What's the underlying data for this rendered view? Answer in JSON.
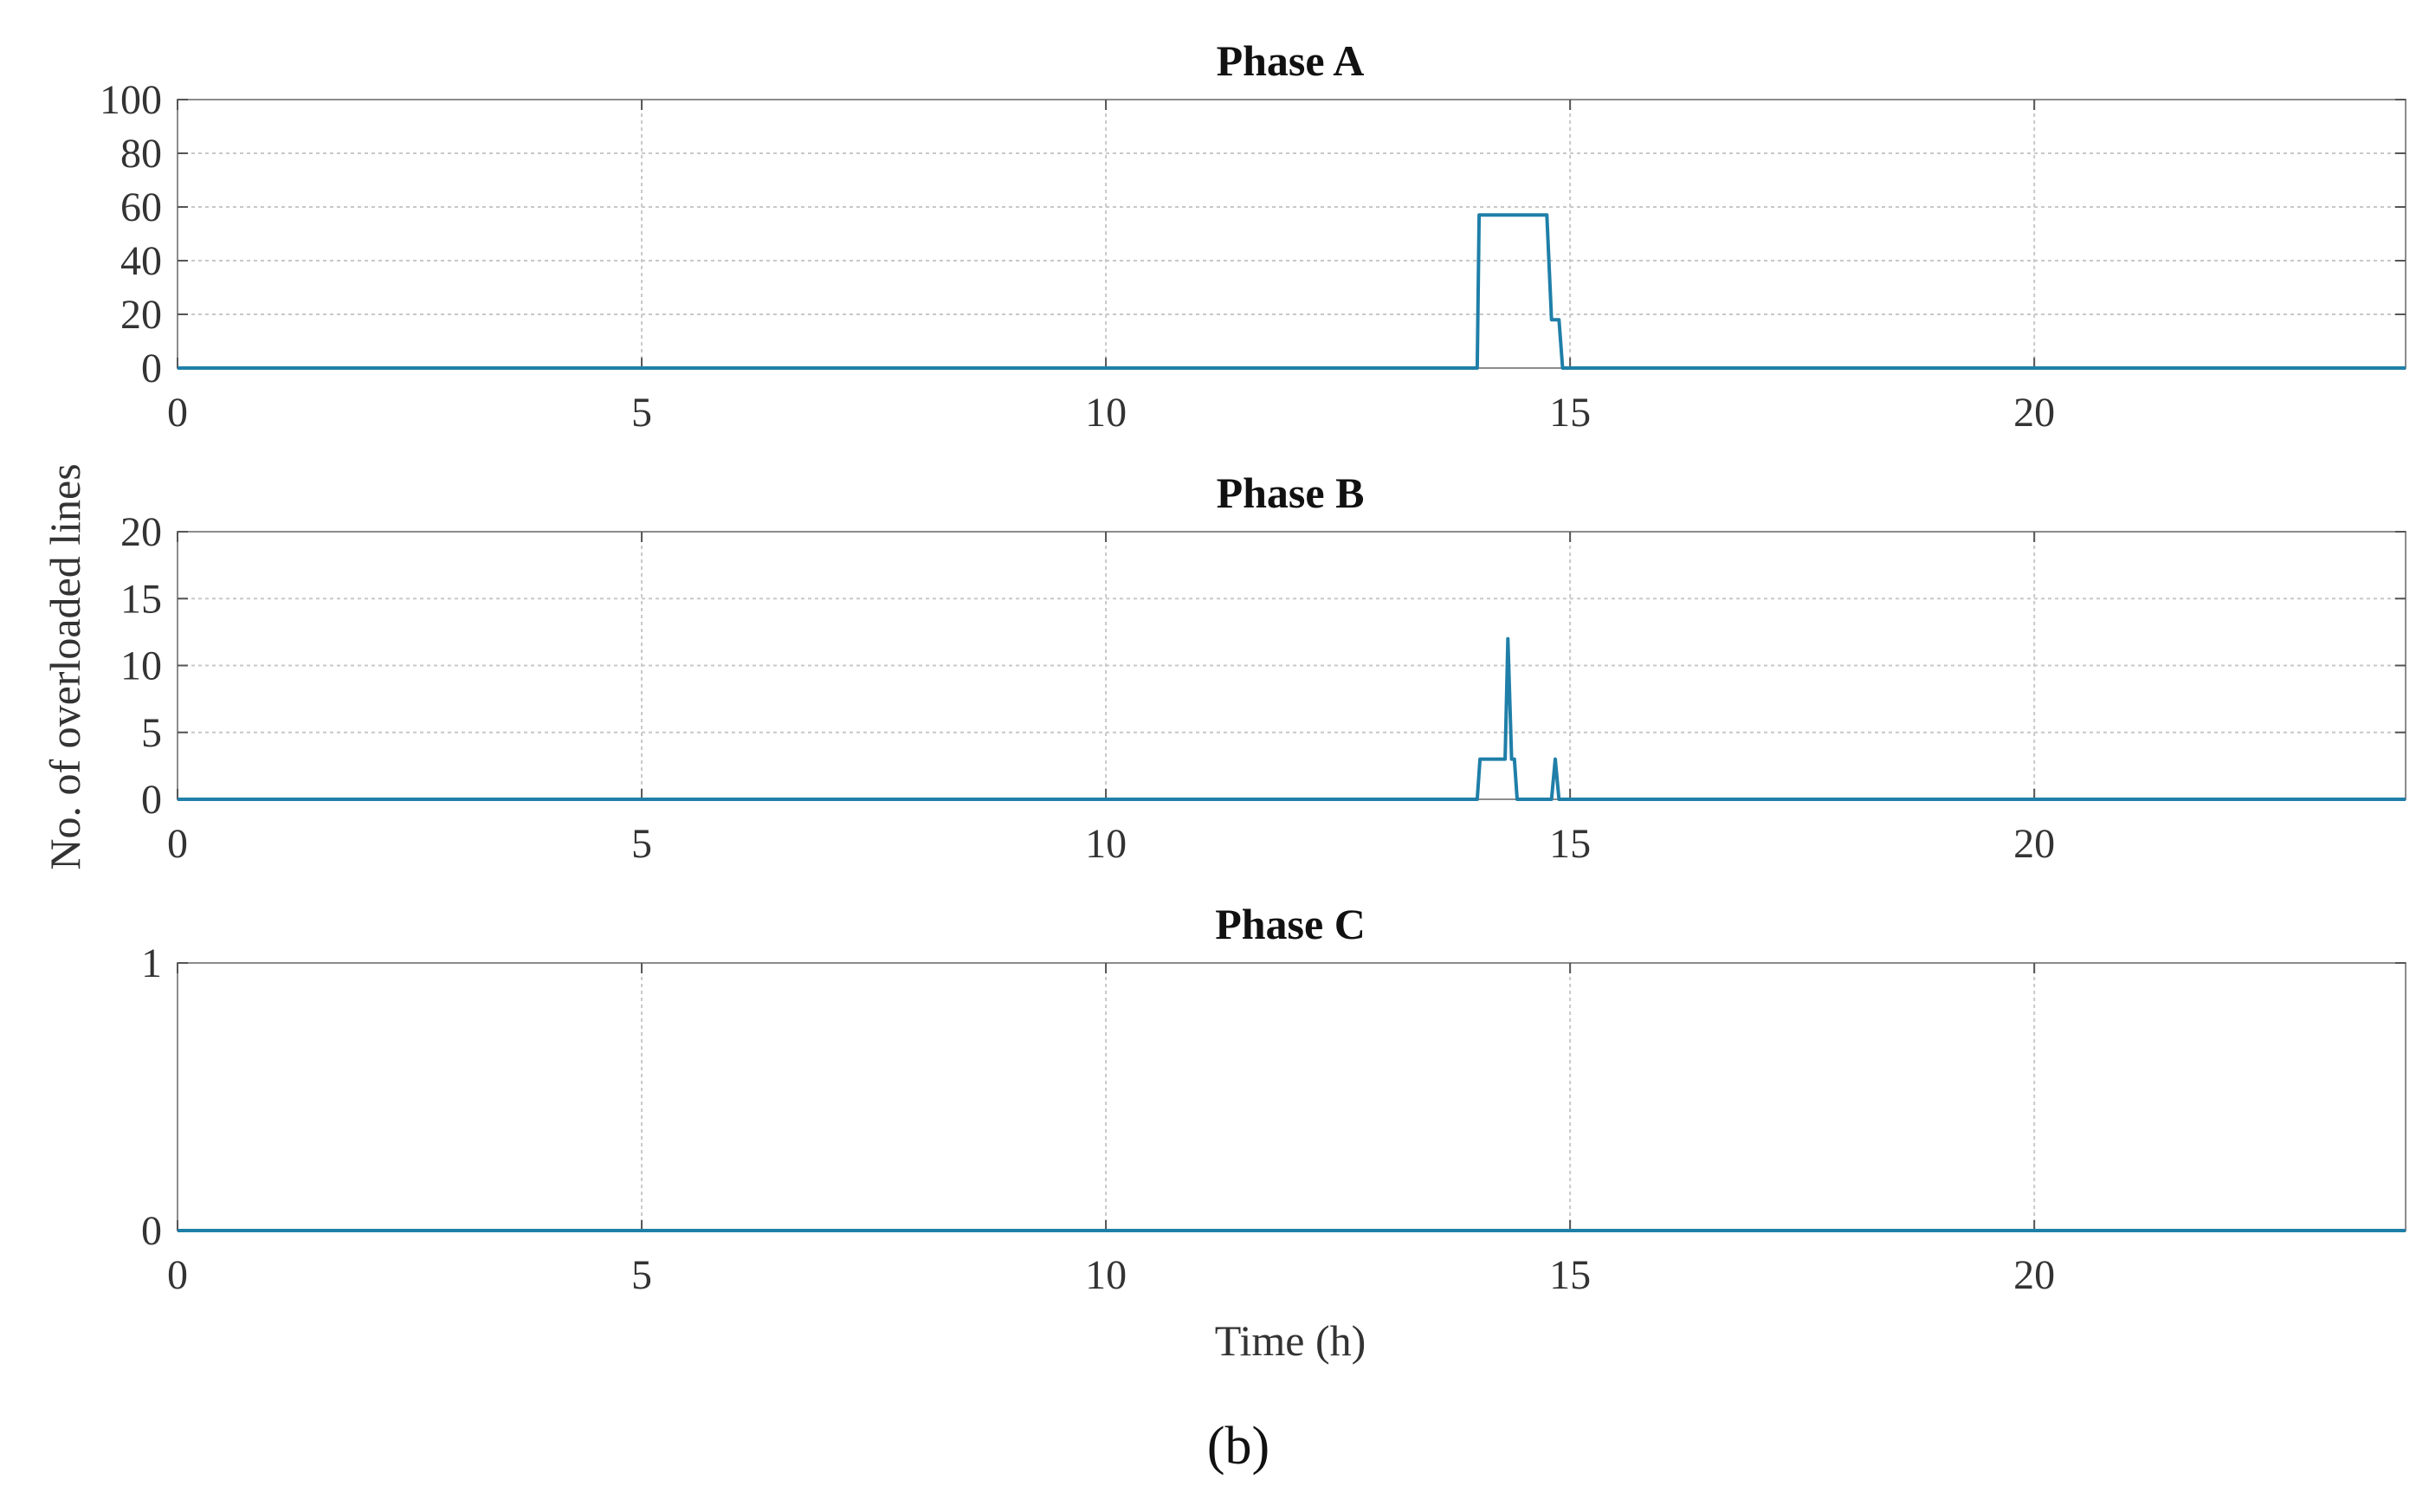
{
  "figure_label": "(b)",
  "ylabel": "No. of overloaded lines",
  "xlabel": "Time (h)",
  "line_color": "#1f7fa8",
  "chart_data": [
    {
      "type": "line",
      "title": "Phase A",
      "xlim": [
        0,
        24
      ],
      "ylim": [
        0,
        100
      ],
      "xticks": [
        0,
        5,
        10,
        15,
        20
      ],
      "yticks": [
        0,
        20,
        40,
        60,
        80,
        100
      ],
      "grid": true,
      "series": [
        {
          "x": [
            0,
            14.0,
            14.02,
            14.75,
            14.8,
            14.85,
            14.88,
            14.92,
            24
          ],
          "y": [
            0,
            0,
            57,
            57,
            18,
            18,
            18,
            0,
            0
          ]
        }
      ]
    },
    {
      "type": "line",
      "title": "Phase B",
      "xlim": [
        0,
        24
      ],
      "ylim": [
        0,
        20
      ],
      "xticks": [
        0,
        5,
        10,
        15,
        20
      ],
      "yticks": [
        0,
        5,
        10,
        15,
        20
      ],
      "grid": true,
      "series": [
        {
          "x": [
            0,
            14.0,
            14.03,
            14.3,
            14.33,
            14.37,
            14.4,
            14.43,
            14.8,
            14.84,
            14.88,
            24
          ],
          "y": [
            0,
            0,
            3,
            3,
            12,
            3,
            3,
            0,
            0,
            3,
            0,
            0
          ]
        }
      ]
    },
    {
      "type": "line",
      "title": "Phase C",
      "xlim": [
        0,
        24
      ],
      "ylim": [
        0,
        1
      ],
      "xticks": [
        0,
        5,
        10,
        15,
        20
      ],
      "yticks": [
        0,
        1
      ],
      "grid": true,
      "series": [
        {
          "x": [
            0,
            24
          ],
          "y": [
            0,
            0
          ]
        }
      ]
    }
  ]
}
